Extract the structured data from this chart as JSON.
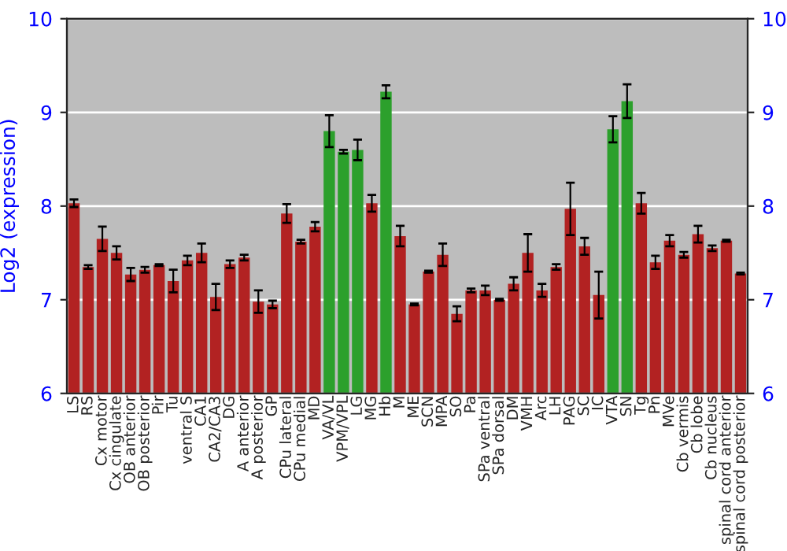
{
  "chart_data": {
    "type": "bar",
    "ylabel": "Log2 (expression)",
    "categories": [
      "LS",
      "RS",
      "Cx motor",
      "Cx cingulate",
      "OB anterior",
      "OB posterior",
      "Pir",
      "Tu",
      "ventral S",
      "CA1",
      "CA2/CA3",
      "DG",
      "A anterior",
      "A posterior",
      "GP",
      "CPu lateral",
      "CPu medial",
      "MD",
      "VA/VL",
      "VPM/VPL",
      "LG",
      "MG",
      "Hb",
      "M",
      "ME",
      "SCN",
      "MPA",
      "SO",
      "Pa",
      "SPa ventral",
      "SPa dorsal",
      "DM",
      "VMH",
      "Arc",
      "LH",
      "PAG",
      "SC",
      "IC",
      "VTA",
      "SN",
      "Tg",
      "Pn",
      "MVe",
      "Cb vermis",
      "Cb lobe",
      "Cb nucleus",
      "spinal cord anterior",
      "spinal cord posterior"
    ],
    "values": [
      8.03,
      7.35,
      7.65,
      7.5,
      7.27,
      7.32,
      7.37,
      7.2,
      7.42,
      7.5,
      7.03,
      7.38,
      7.45,
      6.98,
      6.95,
      7.92,
      7.62,
      7.78,
      8.8,
      8.58,
      8.6,
      8.03,
      9.22,
      7.68,
      6.95,
      7.3,
      7.48,
      6.85,
      7.1,
      7.1,
      7.0,
      7.17,
      7.5,
      7.1,
      7.35,
      7.97,
      7.57,
      7.05,
      8.82,
      9.12,
      8.03,
      7.4,
      7.63,
      7.48,
      7.7,
      7.55,
      7.63,
      7.28
    ],
    "errors": [
      0.04,
      0.02,
      0.13,
      0.07,
      0.07,
      0.03,
      0.01,
      0.12,
      0.05,
      0.1,
      0.14,
      0.04,
      0.03,
      0.12,
      0.04,
      0.1,
      0.02,
      0.05,
      0.17,
      0.02,
      0.11,
      0.09,
      0.07,
      0.11,
      0.01,
      0.01,
      0.12,
      0.08,
      0.02,
      0.05,
      0.01,
      0.07,
      0.2,
      0.07,
      0.03,
      0.28,
      0.09,
      0.25,
      0.14,
      0.18,
      0.11,
      0.07,
      0.06,
      0.03,
      0.09,
      0.03,
      0.01,
      0.01
    ],
    "colors": [
      "#b22222",
      "#b22222",
      "#b22222",
      "#b22222",
      "#b22222",
      "#b22222",
      "#b22222",
      "#b22222",
      "#b22222",
      "#b22222",
      "#b22222",
      "#b22222",
      "#b22222",
      "#b22222",
      "#b22222",
      "#b22222",
      "#b22222",
      "#b22222",
      "#2ca02c",
      "#2ca02c",
      "#2ca02c",
      "#b22222",
      "#2ca02c",
      "#b22222",
      "#b22222",
      "#b22222",
      "#b22222",
      "#b22222",
      "#b22222",
      "#b22222",
      "#b22222",
      "#b22222",
      "#b22222",
      "#b22222",
      "#b22222",
      "#b22222",
      "#b22222",
      "#b22222",
      "#2ca02c",
      "#2ca02c",
      "#b22222",
      "#b22222",
      "#b22222",
      "#b22222",
      "#b22222",
      "#b22222",
      "#b22222",
      "#b22222"
    ],
    "ylim": [
      6,
      10
    ],
    "yticks": [
      6,
      7,
      8,
      9,
      10
    ],
    "y2lim": [
      6,
      10
    ],
    "y2ticks": [
      6,
      7,
      8,
      9,
      10
    ],
    "grid": "y"
  }
}
